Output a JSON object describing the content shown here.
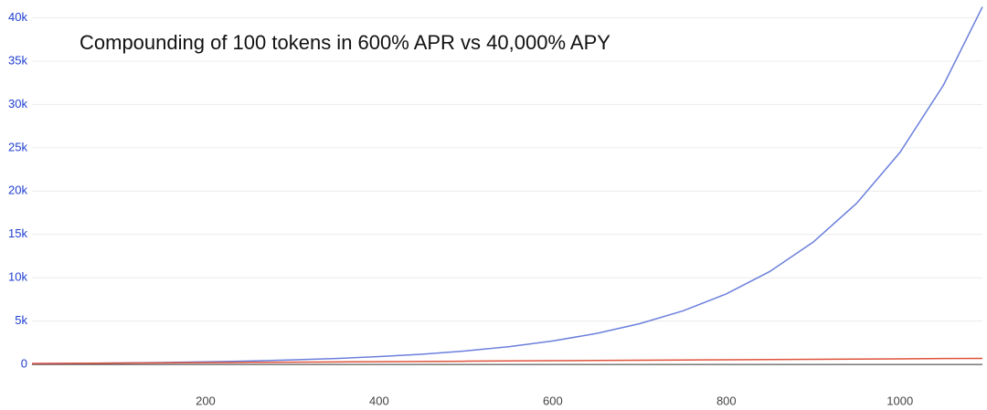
{
  "chart_data": {
    "type": "line",
    "title": "Compounding of 100 tokens in 600% APR vs 40,000% APY",
    "x": [
      0,
      50,
      100,
      150,
      200,
      250,
      300,
      350,
      400,
      450,
      500,
      550,
      600,
      650,
      700,
      750,
      800,
      850,
      900,
      950,
      1000,
      1050,
      1095
    ],
    "series": [
      {
        "color": "#6b7fdc",
        "values": [
          100,
          132,
          173,
          228,
          300,
          396,
          521,
          686,
          903,
          1188,
          1564,
          2059,
          2711,
          3569,
          4699,
          6186,
          8145,
          10723,
          14117,
          18585,
          24469,
          32216,
          41260
        ]
      },
      {
        "color": "#e0533c",
        "values": [
          100,
          128,
          155,
          183,
          210,
          238,
          265,
          293,
          320,
          348,
          375,
          403,
          430,
          458,
          485,
          513,
          540,
          568,
          595,
          623,
          650,
          678,
          702
        ]
      }
    ],
    "xlim": [
      0,
      1095
    ],
    "ylim": [
      -2200,
      41000
    ],
    "xticks": [
      200,
      400,
      600,
      800,
      1000
    ],
    "yticks": [
      0,
      {
        "value": 5000,
        "label": "5k"
      },
      {
        "value": 10000,
        "label": "10k"
      },
      {
        "value": 15000,
        "label": "15k"
      },
      {
        "value": 20000,
        "label": "20k"
      },
      {
        "value": 25000,
        "label": "25k"
      },
      {
        "value": 30000,
        "label": "30k"
      },
      {
        "value": 35000,
        "label": "35k"
      },
      {
        "value": 40000,
        "label": "40k"
      }
    ],
    "grid": true
  }
}
